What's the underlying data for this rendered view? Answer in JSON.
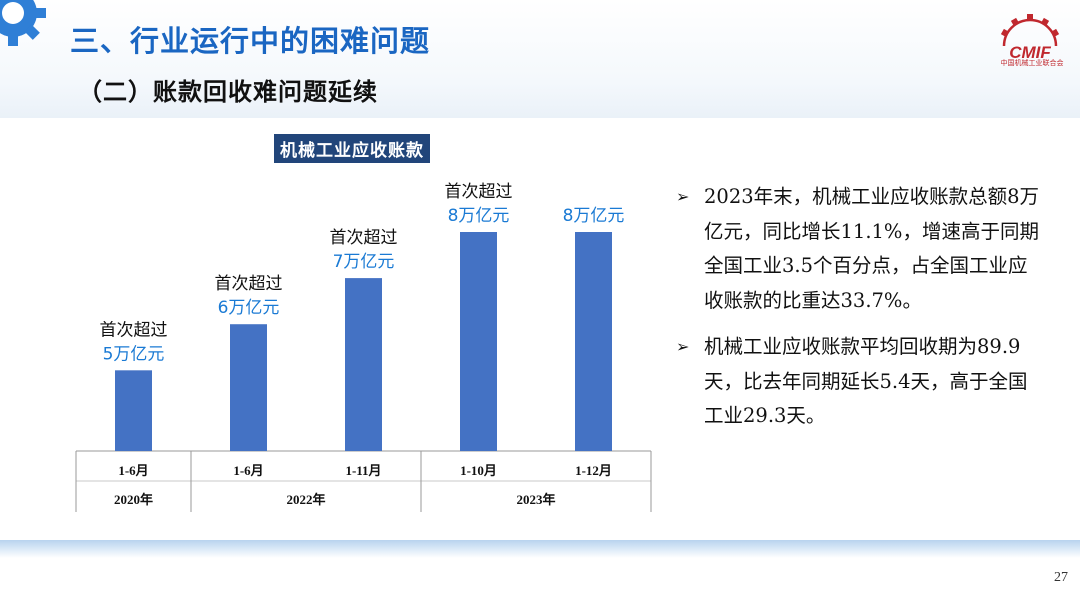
{
  "header": {
    "title": "三、行业运行中的困难问题",
    "subtitle": "（二）账款回收难问题延续",
    "logo_text": "CMIF",
    "logo_subtext": "中国机械工业联合会"
  },
  "colors": {
    "accent": "#1a66c2",
    "bar": "#4472c4",
    "label_blue": "#1a7ad4",
    "title_bg": "#21457a"
  },
  "chart_data": {
    "type": "bar",
    "title": "机械工业应收账款",
    "categories": [
      "1-6月",
      "1-6月",
      "1-11月",
      "1-10月",
      "1-12月"
    ],
    "groups": [
      {
        "label": "2020年",
        "span": 1
      },
      {
        "label": "2022年",
        "span": 2
      },
      {
        "label": "2023年",
        "span": 2
      }
    ],
    "values": [
      5,
      6,
      7,
      8,
      8
    ],
    "ylim": [
      0,
      9
    ],
    "annotations": [
      {
        "top": "首次超过",
        "value": "5万亿元"
      },
      {
        "top": "首次超过",
        "value": "6万亿元"
      },
      {
        "top": "首次超过",
        "value": "7万亿元"
      },
      {
        "top": "首次超过",
        "value": "8万亿元"
      },
      {
        "top": "",
        "value": "8万亿元"
      }
    ]
  },
  "bullets": [
    "2023年末，机械工业应收账款总额8万亿元，同比增长11.1%，增速高于同期全国工业3.5个百分点，占全国工业应收账款的比重达33.7%。",
    "机械工业应收账款平均回收期为89.9天，比去年同期延长5.4天，高于全国工业29.3天。"
  ],
  "page_number": "27"
}
